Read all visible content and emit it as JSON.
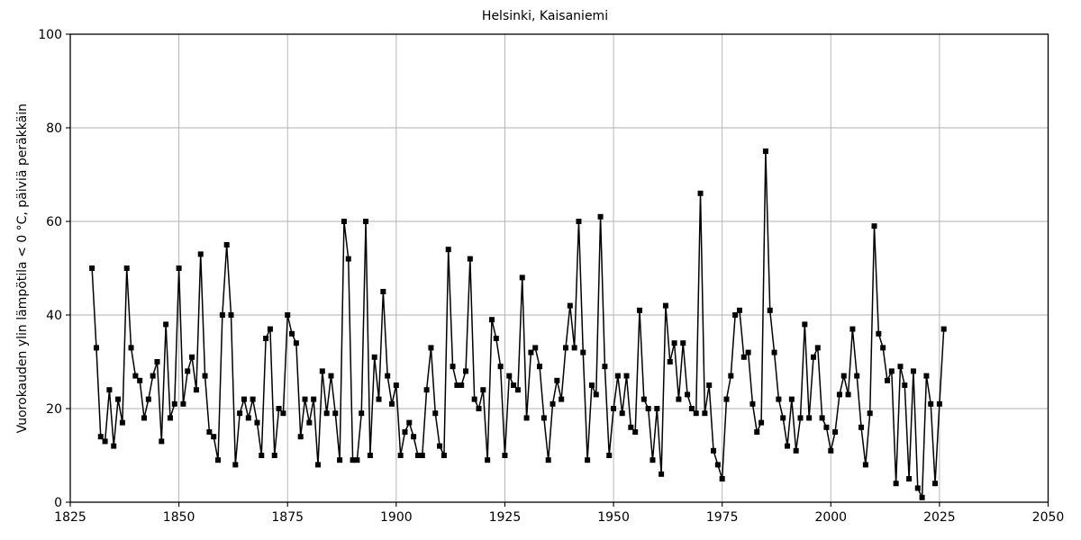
{
  "figure": {
    "background": "#ffffff",
    "frame_color": "#000000",
    "grid_color": "#b0b0b0",
    "tick_color": "#000000"
  },
  "chart_data": {
    "type": "line",
    "title": "Helsinki, Kaisaniemi",
    "xlabel": "",
    "ylabel": "Vuorokauden ylin lämpötila < 0 °C, päiviä peräkkäin",
    "xlim": [
      1825,
      2050
    ],
    "ylim": [
      0,
      100
    ],
    "xticks": [
      1825,
      1850,
      1875,
      1900,
      1925,
      1950,
      1975,
      2000,
      2025,
      2050
    ],
    "yticks": [
      0,
      20,
      40,
      60,
      80,
      100
    ],
    "grid": true,
    "legend_position": "none",
    "line_color": "#000000",
    "line_width": 1.5,
    "marker": "square",
    "marker_size": 6,
    "marker_color": "#000000",
    "x": [
      1830,
      1831,
      1832,
      1833,
      1834,
      1835,
      1836,
      1837,
      1838,
      1839,
      1840,
      1841,
      1842,
      1843,
      1844,
      1845,
      1846,
      1847,
      1848,
      1849,
      1850,
      1851,
      1852,
      1853,
      1854,
      1855,
      1856,
      1857,
      1858,
      1859,
      1860,
      1861,
      1862,
      1863,
      1864,
      1865,
      1866,
      1867,
      1868,
      1869,
      1870,
      1871,
      1872,
      1873,
      1874,
      1875,
      1876,
      1877,
      1878,
      1879,
      1880,
      1881,
      1882,
      1883,
      1884,
      1885,
      1886,
      1887,
      1888,
      1889,
      1890,
      1891,
      1892,
      1893,
      1894,
      1895,
      1896,
      1897,
      1898,
      1899,
      1900,
      1901,
      1902,
      1903,
      1904,
      1905,
      1906,
      1907,
      1908,
      1909,
      1910,
      1911,
      1912,
      1913,
      1914,
      1915,
      1916,
      1917,
      1918,
      1919,
      1920,
      1921,
      1922,
      1923,
      1924,
      1925,
      1926,
      1927,
      1928,
      1929,
      1930,
      1931,
      1932,
      1933,
      1934,
      1935,
      1936,
      1937,
      1938,
      1939,
      1940,
      1941,
      1942,
      1943,
      1944,
      1945,
      1946,
      1947,
      1948,
      1949,
      1950,
      1951,
      1952,
      1953,
      1954,
      1955,
      1956,
      1957,
      1958,
      1959,
      1960,
      1961,
      1962,
      1963,
      1964,
      1965,
      1966,
      1967,
      1968,
      1969,
      1970,
      1971,
      1972,
      1973,
      1974,
      1975,
      1976,
      1977,
      1978,
      1979,
      1980,
      1981,
      1982,
      1983,
      1984,
      1985,
      1986,
      1987,
      1988,
      1989,
      1990,
      1991,
      1992,
      1993,
      1994,
      1995,
      1996,
      1997,
      1998,
      1999,
      2000,
      2001,
      2002,
      2003,
      2004,
      2005,
      2006,
      2007,
      2008,
      2009,
      2010,
      2011,
      2012,
      2013,
      2014,
      2015,
      2016,
      2017,
      2018,
      2019,
      2020,
      2021,
      2022,
      2023,
      2024,
      2025,
      2026
    ],
    "values": [
      50,
      33,
      14,
      13,
      24,
      12,
      22,
      17,
      50,
      33,
      27,
      26,
      18,
      22,
      27,
      30,
      13,
      38,
      18,
      21,
      50,
      21,
      28,
      31,
      24,
      53,
      27,
      15,
      14,
      9,
      40,
      55,
      40,
      8,
      19,
      22,
      18,
      22,
      17,
      10,
      35,
      37,
      10,
      20,
      19,
      40,
      36,
      34,
      14,
      22,
      17,
      22,
      8,
      28,
      19,
      27,
      19,
      9,
      60,
      52,
      9,
      9,
      19,
      60,
      10,
      31,
      22,
      45,
      27,
      21,
      25,
      10,
      15,
      17,
      14,
      10,
      10,
      24,
      33,
      19,
      12,
      10,
      54,
      29,
      25,
      25,
      28,
      52,
      22,
      20,
      24,
      9,
      39,
      35,
      29,
      10,
      27,
      25,
      24,
      48,
      18,
      32,
      33,
      29,
      18,
      9,
      21,
      26,
      22,
      33,
      42,
      33,
      60,
      32,
      9,
      25,
      23,
      61,
      29,
      10,
      20,
      27,
      19,
      27,
      16,
      15,
      41,
      22,
      20,
      9,
      20,
      6,
      42,
      30,
      34,
      22,
      34,
      23,
      20,
      19,
      66,
      19,
      25,
      11,
      8,
      5,
      22,
      27,
      40,
      41,
      31,
      32,
      21,
      15,
      17,
      75,
      41,
      32,
      22,
      18,
      12,
      22,
      11,
      18,
      38,
      18,
      31,
      33,
      18,
      16,
      11,
      15,
      23,
      27,
      23,
      37,
      27,
      16,
      8,
      19,
      59,
      36,
      33,
      26,
      28,
      4,
      29,
      25,
      5,
      28,
      3,
      1,
      27,
      21,
      4,
      21,
      37
    ]
  }
}
